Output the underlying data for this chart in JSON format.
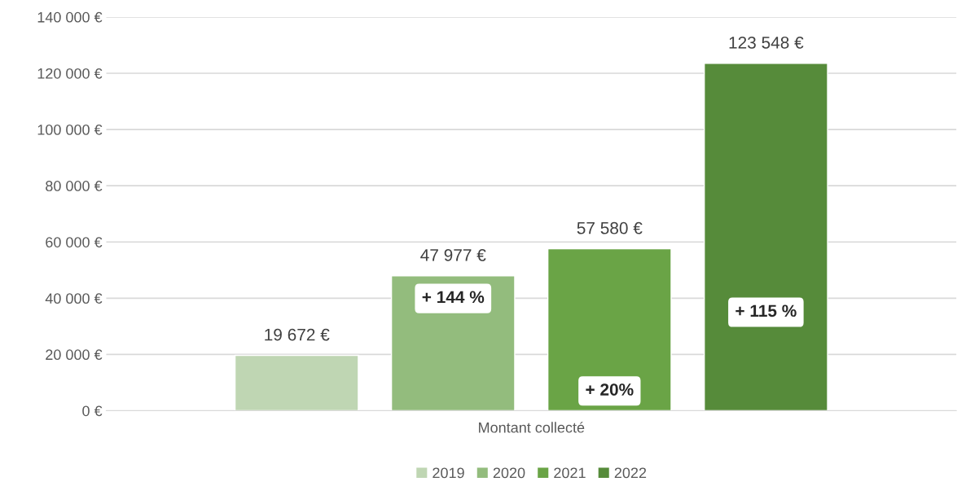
{
  "chart_data": {
    "type": "bar",
    "categories": [
      "Montant collecté"
    ],
    "series": [
      {
        "name": "2019",
        "color": "#bfd6b3",
        "values": [
          19672
        ],
        "value_labels": [
          "19 672 €"
        ]
      },
      {
        "name": "2020",
        "color": "#93bc7d",
        "values": [
          47977
        ],
        "value_labels": [
          "47 977 €"
        ]
      },
      {
        "name": "2021",
        "color": "#6aa446",
        "values": [
          57580
        ],
        "value_labels": [
          "57 580 €"
        ]
      },
      {
        "name": "2022",
        "color": "#568b3a",
        "values": [
          123548
        ],
        "value_labels": [
          "123 548 €"
        ]
      }
    ],
    "ylim": [
      0,
      140000
    ],
    "yticks": [
      {
        "value": 0,
        "label": "0 €"
      },
      {
        "value": 20000,
        "label": "20 000 €"
      },
      {
        "value": 40000,
        "label": "40 000 €"
      },
      {
        "value": 60000,
        "label": "60 000 €"
      },
      {
        "value": 80000,
        "label": "80 000 €"
      },
      {
        "value": 100000,
        "label": "100 000 €"
      },
      {
        "value": 120000,
        "label": "120 000 €"
      },
      {
        "value": 140000,
        "label": "140 000 €"
      }
    ],
    "grid": "y",
    "legend": "bottom",
    "annotations": [
      "+ 144 %",
      "+ 20%",
      "+ 115 %"
    ]
  }
}
